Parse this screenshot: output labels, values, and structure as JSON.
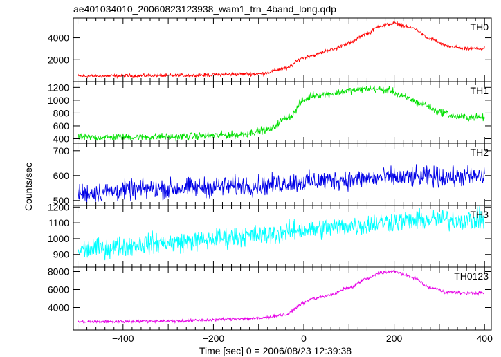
{
  "chart_data": {
    "type": "line",
    "title": "ae401034010_20060823123938_wam1_trn_4band_long.qdp",
    "xlabel": "Time [sec] 0 = 2006/08/23 12:39:38",
    "ylabel": "Counts/sec",
    "xlim": [
      -510,
      415
    ],
    "xticks": [
      -400,
      -200,
      0,
      200,
      400
    ],
    "xtick_labels": [
      "−400",
      "−200",
      "0",
      "200",
      "400"
    ],
    "grid": false,
    "panels": [
      {
        "name": "TH0",
        "color": "#ff0000",
        "ylim": [
          0,
          5800
        ],
        "yticks": [
          2000,
          4000
        ],
        "ytick_labels": [
          "2000",
          "4000"
        ],
        "noise": 100,
        "x": [
          -500,
          -300,
          -100,
          -40,
          0,
          20,
          60,
          100,
          140,
          170,
          200,
          240,
          280,
          320,
          360,
          400
        ],
        "y": [
          500,
          550,
          700,
          1200,
          2200,
          2400,
          2900,
          3500,
          4400,
          5100,
          5300,
          4900,
          3900,
          3200,
          3000,
          3000
        ]
      },
      {
        "name": "TH1",
        "color": "#00e000",
        "ylim": [
          330,
          1290
        ],
        "yticks": [
          400,
          600,
          800,
          1000,
          1200
        ],
        "ytick_labels": [
          "400",
          "600",
          "800",
          "1000",
          "1200"
        ],
        "noise": 35,
        "x": [
          -500,
          -300,
          -150,
          -80,
          -30,
          0,
          20,
          60,
          100,
          150,
          190,
          220,
          260,
          300,
          340,
          400
        ],
        "y": [
          420,
          430,
          460,
          540,
          750,
          1000,
          1080,
          1100,
          1150,
          1180,
          1150,
          1050,
          950,
          820,
          740,
          730
        ]
      },
      {
        "name": "TH2",
        "color": "#0000e6",
        "ylim": [
          480,
          730
        ],
        "yticks": [
          500,
          600,
          700
        ],
        "ytick_labels": [
          "500",
          "600",
          "700"
        ],
        "noise": 25,
        "x": [
          -500,
          -300,
          -100,
          0,
          100,
          200,
          300,
          400
        ],
        "y": [
          530,
          548,
          560,
          575,
          585,
          592,
          595,
          595
        ]
      },
      {
        "name": "TH3",
        "color": "#00ffff",
        "ylim": [
          820,
          1210
        ],
        "yticks": [
          900,
          1000,
          1100,
          1200
        ],
        "ytick_labels": [
          "900",
          "1000",
          "1100",
          "1200"
        ],
        "noise": 40,
        "x": [
          -500,
          -300,
          -100,
          0,
          100,
          200,
          300,
          400
        ],
        "y": [
          930,
          975,
          1020,
          1055,
          1080,
          1110,
          1120,
          1120
        ]
      },
      {
        "name": "TH0123",
        "color": "#e600e6",
        "ylim": [
          1500,
          8500
        ],
        "yticks": [
          4000,
          6000,
          8000
        ],
        "ytick_labels": [
          "4000",
          "6000",
          "8000"
        ],
        "noise": 110,
        "x": [
          -500,
          -300,
          -100,
          -40,
          0,
          20,
          60,
          100,
          140,
          170,
          200,
          240,
          280,
          320,
          360,
          400
        ],
        "y": [
          2400,
          2500,
          2800,
          3200,
          4500,
          5000,
          5400,
          6200,
          7200,
          7900,
          8000,
          7400,
          6200,
          5700,
          5600,
          5600
        ]
      }
    ]
  }
}
